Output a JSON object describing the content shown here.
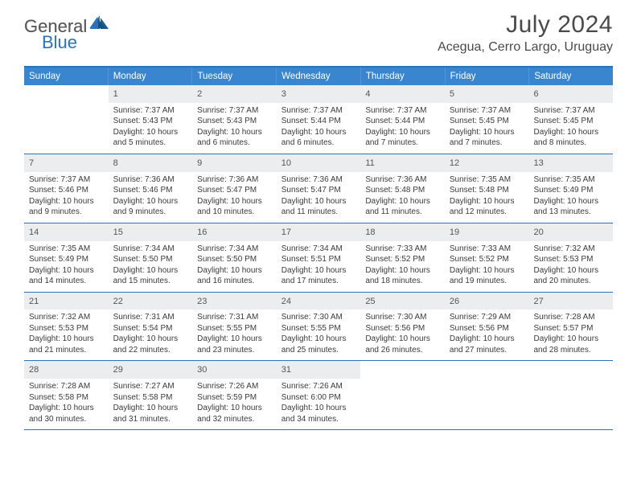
{
  "logo": {
    "text1": "General",
    "text2": "Blue"
  },
  "title": "July 2024",
  "location": "Acegua, Cerro Largo, Uruguay",
  "colors": {
    "header_bar": "#3a85cf",
    "border": "#2d72b8",
    "daynum_bg": "#ecedee",
    "text": "#3a3a3a",
    "title_text": "#4a4a4a"
  },
  "dow": [
    "Sunday",
    "Monday",
    "Tuesday",
    "Wednesday",
    "Thursday",
    "Friday",
    "Saturday"
  ],
  "weeks": [
    [
      {
        "empty": true
      },
      {
        "n": "1",
        "sr": "7:37 AM",
        "ss": "5:43 PM",
        "dl": "10 hours and 5 minutes."
      },
      {
        "n": "2",
        "sr": "7:37 AM",
        "ss": "5:43 PM",
        "dl": "10 hours and 6 minutes."
      },
      {
        "n": "3",
        "sr": "7:37 AM",
        "ss": "5:44 PM",
        "dl": "10 hours and 6 minutes."
      },
      {
        "n": "4",
        "sr": "7:37 AM",
        "ss": "5:44 PM",
        "dl": "10 hours and 7 minutes."
      },
      {
        "n": "5",
        "sr": "7:37 AM",
        "ss": "5:45 PM",
        "dl": "10 hours and 7 minutes."
      },
      {
        "n": "6",
        "sr": "7:37 AM",
        "ss": "5:45 PM",
        "dl": "10 hours and 8 minutes."
      }
    ],
    [
      {
        "n": "7",
        "sr": "7:37 AM",
        "ss": "5:46 PM",
        "dl": "10 hours and 9 minutes."
      },
      {
        "n": "8",
        "sr": "7:36 AM",
        "ss": "5:46 PM",
        "dl": "10 hours and 9 minutes."
      },
      {
        "n": "9",
        "sr": "7:36 AM",
        "ss": "5:47 PM",
        "dl": "10 hours and 10 minutes."
      },
      {
        "n": "10",
        "sr": "7:36 AM",
        "ss": "5:47 PM",
        "dl": "10 hours and 11 minutes."
      },
      {
        "n": "11",
        "sr": "7:36 AM",
        "ss": "5:48 PM",
        "dl": "10 hours and 11 minutes."
      },
      {
        "n": "12",
        "sr": "7:35 AM",
        "ss": "5:48 PM",
        "dl": "10 hours and 12 minutes."
      },
      {
        "n": "13",
        "sr": "7:35 AM",
        "ss": "5:49 PM",
        "dl": "10 hours and 13 minutes."
      }
    ],
    [
      {
        "n": "14",
        "sr": "7:35 AM",
        "ss": "5:49 PM",
        "dl": "10 hours and 14 minutes."
      },
      {
        "n": "15",
        "sr": "7:34 AM",
        "ss": "5:50 PM",
        "dl": "10 hours and 15 minutes."
      },
      {
        "n": "16",
        "sr": "7:34 AM",
        "ss": "5:50 PM",
        "dl": "10 hours and 16 minutes."
      },
      {
        "n": "17",
        "sr": "7:34 AM",
        "ss": "5:51 PM",
        "dl": "10 hours and 17 minutes."
      },
      {
        "n": "18",
        "sr": "7:33 AM",
        "ss": "5:52 PM",
        "dl": "10 hours and 18 minutes."
      },
      {
        "n": "19",
        "sr": "7:33 AM",
        "ss": "5:52 PM",
        "dl": "10 hours and 19 minutes."
      },
      {
        "n": "20",
        "sr": "7:32 AM",
        "ss": "5:53 PM",
        "dl": "10 hours and 20 minutes."
      }
    ],
    [
      {
        "n": "21",
        "sr": "7:32 AM",
        "ss": "5:53 PM",
        "dl": "10 hours and 21 minutes."
      },
      {
        "n": "22",
        "sr": "7:31 AM",
        "ss": "5:54 PM",
        "dl": "10 hours and 22 minutes."
      },
      {
        "n": "23",
        "sr": "7:31 AM",
        "ss": "5:55 PM",
        "dl": "10 hours and 23 minutes."
      },
      {
        "n": "24",
        "sr": "7:30 AM",
        "ss": "5:55 PM",
        "dl": "10 hours and 25 minutes."
      },
      {
        "n": "25",
        "sr": "7:30 AM",
        "ss": "5:56 PM",
        "dl": "10 hours and 26 minutes."
      },
      {
        "n": "26",
        "sr": "7:29 AM",
        "ss": "5:56 PM",
        "dl": "10 hours and 27 minutes."
      },
      {
        "n": "27",
        "sr": "7:28 AM",
        "ss": "5:57 PM",
        "dl": "10 hours and 28 minutes."
      }
    ],
    [
      {
        "n": "28",
        "sr": "7:28 AM",
        "ss": "5:58 PM",
        "dl": "10 hours and 30 minutes."
      },
      {
        "n": "29",
        "sr": "7:27 AM",
        "ss": "5:58 PM",
        "dl": "10 hours and 31 minutes."
      },
      {
        "n": "30",
        "sr": "7:26 AM",
        "ss": "5:59 PM",
        "dl": "10 hours and 32 minutes."
      },
      {
        "n": "31",
        "sr": "7:26 AM",
        "ss": "6:00 PM",
        "dl": "10 hours and 34 minutes."
      },
      {
        "empty": true
      },
      {
        "empty": true
      },
      {
        "empty": true
      }
    ]
  ]
}
